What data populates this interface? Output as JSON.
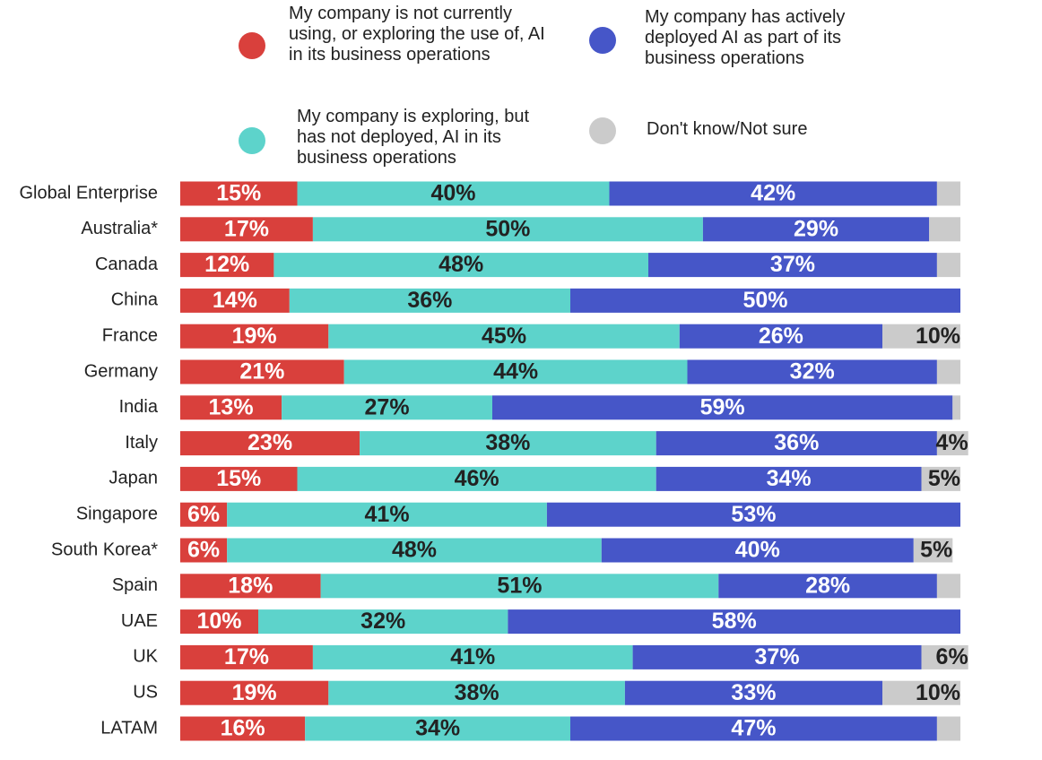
{
  "chart_data": {
    "type": "stacked-bar-horizontal",
    "categories": [
      "Global Enterprise",
      "Australia*",
      "Canada",
      "China",
      "France",
      "Germany",
      "India",
      "Italy",
      "Japan",
      "Singapore",
      "South Korea*",
      "Spain",
      "UAE",
      "UK",
      "US",
      "LATAM"
    ],
    "xlim": [
      0,
      100
    ],
    "series": [
      {
        "name": "My company is not currently using, or exploring the use of, AI in its business operations",
        "color": "#d9403c",
        "values": [
          15,
          17,
          12,
          14,
          19,
          21,
          13,
          23,
          15,
          6,
          6,
          18,
          10,
          17,
          19,
          16
        ],
        "value_labels": [
          "15%",
          "17%",
          "12%",
          "14%",
          "19%",
          "21%",
          "13%",
          "23%",
          "15%",
          "6%",
          "6%",
          "18%",
          "10%",
          "17%",
          "19%",
          "16%"
        ]
      },
      {
        "name": "My company is exploring, but has not deployed, AI in its business operations",
        "color": "#5dd3cb",
        "values": [
          40,
          50,
          48,
          36,
          45,
          44,
          27,
          38,
          46,
          41,
          48,
          51,
          32,
          41,
          38,
          34
        ],
        "value_labels": [
          "40%",
          "50%",
          "48%",
          "36%",
          "45%",
          "44%",
          "27%",
          "38%",
          "46%",
          "41%",
          "48%",
          "51%",
          "32%",
          "41%",
          "38%",
          "34%"
        ]
      },
      {
        "name": "My company has actively deployed AI as part of its business operations",
        "color": "#4656c8",
        "values": [
          42,
          29,
          37,
          50,
          26,
          32,
          59,
          36,
          34,
          53,
          40,
          28,
          58,
          37,
          33,
          47
        ],
        "value_labels": [
          "42%",
          "29%",
          "37%",
          "50%",
          "26%",
          "32%",
          "59%",
          "36%",
          "34%",
          "53%",
          "40%",
          "28%",
          "58%",
          "37%",
          "33%",
          "47%"
        ]
      },
      {
        "name": "Don't know/Not sure",
        "color": "#cbcbcb",
        "values": [
          3,
          4,
          3,
          0,
          10,
          3,
          1,
          4,
          5,
          0,
          5,
          3,
          0,
          6,
          10,
          3
        ],
        "value_labels": [
          null,
          null,
          null,
          null,
          "10%",
          null,
          null,
          "4%",
          "5%",
          null,
          "5%",
          null,
          null,
          "6%",
          "10%",
          null
        ]
      }
    ]
  }
}
